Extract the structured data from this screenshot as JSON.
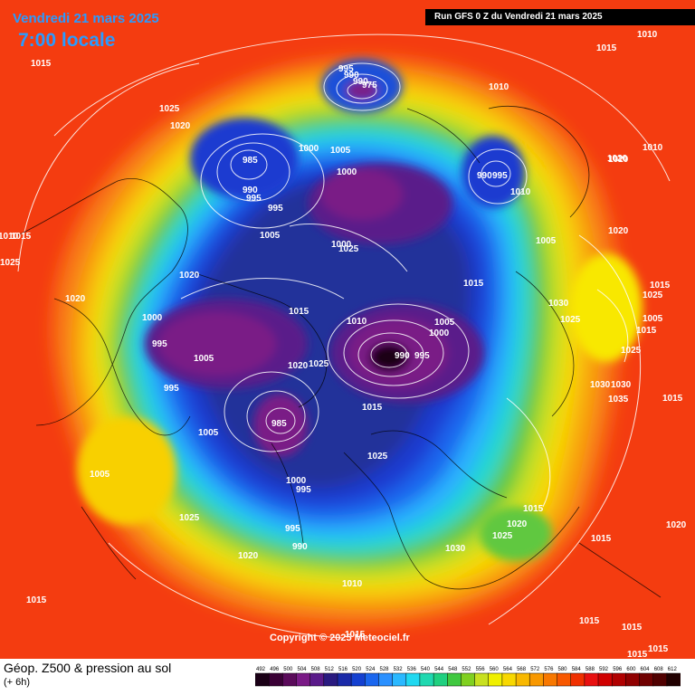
{
  "header": {
    "date": "Vendredi 21 mars 2025",
    "time": "7:00 locale",
    "run": "Run GFS 0 Z du Vendredi 21 mars 2025"
  },
  "copyright": "Copyright © 2025 Meteociel.fr",
  "footer": {
    "title": "Géop. Z500 & pression au sol",
    "subtitle": "(+ 6h)"
  },
  "legend": {
    "values": [
      "492",
      "496",
      "500",
      "504",
      "508",
      "512",
      "516",
      "520",
      "524",
      "528",
      "532",
      "536",
      "540",
      "544",
      "548",
      "552",
      "556",
      "560",
      "564",
      "568",
      "572",
      "576",
      "580",
      "584",
      "588",
      "592",
      "596",
      "600",
      "604",
      "608",
      "612"
    ],
    "colors": [
      "#1a0016",
      "#3a0035",
      "#5a0a5a",
      "#7a1a86",
      "#5a1a8a",
      "#2a1a80",
      "#1a2aa8",
      "#1440d0",
      "#1a66ee",
      "#2a90ff",
      "#2ab8ff",
      "#20d8f0",
      "#20d8b0",
      "#20d080",
      "#40c840",
      "#80d020",
      "#c8e020",
      "#f0f000",
      "#f8d800",
      "#f8b800",
      "#f89800",
      "#f87800",
      "#f85800",
      "#f03000",
      "#e81010",
      "#d00000",
      "#b00000",
      "#900000",
      "#700000",
      "#500000",
      "#200000"
    ]
  },
  "pressure_labels": [
    "1015",
    "1025",
    "1020",
    "1010",
    "1015",
    "1025",
    "1020",
    "1000",
    "995",
    "1005",
    "1020",
    "1000",
    "1025",
    "1005",
    "985",
    "990",
    "995",
    "995",
    "1005",
    "1000",
    "1010",
    "995",
    "990",
    "990",
    "1000",
    "975",
    "990",
    "995",
    "1030",
    "1025",
    "1015",
    "1010",
    "1005",
    "1000",
    "990",
    "995",
    "1015",
    "995",
    "985",
    "1025",
    "1020",
    "1005",
    "1005",
    "1025",
    "1020",
    "1015",
    "1010",
    "1015",
    "1030",
    "1025",
    "1015",
    "1005",
    "1035",
    "1030",
    "1015",
    "1015",
    "1005",
    "1015",
    "1010",
    "1010",
    "1020",
    "1020",
    "1015",
    "1025",
    "995",
    "990",
    "1000",
    "995",
    "1010",
    "1020",
    "1020",
    "1030",
    "1015",
    "1025",
    "1020",
    "1025",
    "1015",
    "1015",
    "1015",
    "1015",
    "1015"
  ]
}
